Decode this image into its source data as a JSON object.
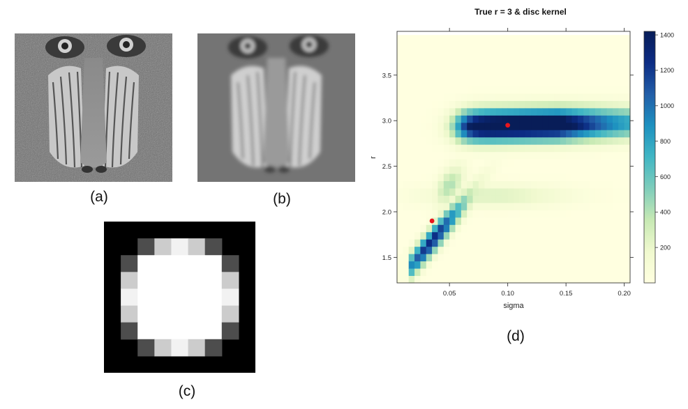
{
  "figure": {
    "captions": {
      "a": "(a)",
      "b": "(b)",
      "c": "(c)",
      "d": "(d)"
    }
  },
  "panel_a": {
    "description": "baboon (mandrill) face, sharp grayscale photograph"
  },
  "panel_b": {
    "description": "baboon (mandrill) face, blurred grayscale photograph"
  },
  "panel_c": {
    "description": "disc kernel, 9x9 grid of gray levels (0=black, 1=white)",
    "grid": [
      [
        0,
        0,
        0,
        0,
        0,
        0,
        0,
        0,
        0
      ],
      [
        0,
        0,
        0.3,
        0.8,
        0.95,
        0.8,
        0.3,
        0,
        0
      ],
      [
        0,
        0.3,
        1,
        1,
        1,
        1,
        1,
        0.3,
        0
      ],
      [
        0,
        0.8,
        1,
        1,
        1,
        1,
        1,
        0.8,
        0
      ],
      [
        0,
        0.95,
        1,
        1,
        1,
        1,
        1,
        0.95,
        0
      ],
      [
        0,
        0.8,
        1,
        1,
        1,
        1,
        1,
        0.8,
        0
      ],
      [
        0,
        0.3,
        1,
        1,
        1,
        1,
        1,
        0.3,
        0
      ],
      [
        0,
        0,
        0.3,
        0.8,
        0.95,
        0.8,
        0.3,
        0,
        0
      ],
      [
        0,
        0,
        0,
        0,
        0,
        0,
        0,
        0,
        0
      ]
    ]
  },
  "chart_data": {
    "type": "heatmap",
    "title": "True r = 3 & disc kernel",
    "xlabel": "sigma",
    "ylabel": "r",
    "xlim": [
      0.005,
      0.205
    ],
    "ylim": [
      1.22,
      3.98
    ],
    "x_ticks": [
      0.05,
      0.1,
      0.15,
      0.2
    ],
    "x_tick_labels": [
      "0.05",
      "0.10",
      "0.15",
      "0.20"
    ],
    "y_ticks": [
      1.5,
      2.0,
      2.5,
      3.0,
      3.5
    ],
    "y_tick_labels": [
      "1.5",
      "2.0",
      "2.5",
      "3.0",
      "3.5"
    ],
    "grid_x": {
      "start": 0.005,
      "step": 0.005,
      "count": 40
    },
    "grid_y": {
      "start": 1.22,
      "step": 0.08,
      "count": 34
    },
    "value_range": [
      0,
      1420
    ],
    "colorbar": {
      "ticks": [
        200,
        400,
        600,
        800,
        1000,
        1200,
        1400
      ],
      "tick_labels": [
        "200",
        "400",
        "600",
        "800",
        "1000",
        "1200",
        "1400"
      ],
      "stops": [
        "#ffffe0",
        "#f0f9cf",
        "#c7e9b4",
        "#7fcdbb",
        "#41b6c4",
        "#1d91c0",
        "#225ea8",
        "#0c2c84",
        "#081d58"
      ]
    },
    "peaks": [
      {
        "sigma": 0.1,
        "r": 2.95,
        "value": 1420
      },
      {
        "sigma": 0.035,
        "r": 1.9,
        "value": 1080
      }
    ],
    "highlighted_points": [
      {
        "sigma": 0.1,
        "r": 2.95
      },
      {
        "sigma": 0.035,
        "r": 1.9
      }
    ],
    "point_color": "#e8141c",
    "grid": false
  }
}
